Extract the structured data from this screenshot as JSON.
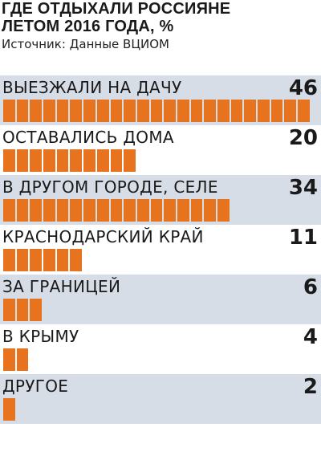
{
  "header": {
    "title": "ГДЕ ОТДЫХАЛИ РОССИЯНЕ\nЛЕТОМ 2016 ГОДА, %",
    "subtitle": "Источник: Данные ВЦИОМ"
  },
  "colors": {
    "bar": "#e8731e",
    "shade": "#d7dde6"
  },
  "chart_data": {
    "type": "bar",
    "title": "ГДЕ ОТДЫХАЛИ РОССИЯНЕ ЛЕТОМ 2016 ГОДА, %",
    "subtitle": "Источник: Данные ВЦИОМ",
    "orientation": "horizontal",
    "unit": "%",
    "xlim": [
      0,
      46
    ],
    "grid": false,
    "categories": [
      "ВЫЕЗЖАЛИ НА ДАЧУ",
      "ОСТАВАЛИСЬ ДОМА",
      "В ДРУГОМ ГОРОДЕ, СЕЛЕ",
      "КРАСНОДАРСКИЙ КРАЙ",
      "ЗА ГРАНИЦЕЙ",
      "В КРЫМУ",
      "ДРУГОЕ"
    ],
    "values": [
      46,
      20,
      34,
      11,
      6,
      4,
      2
    ]
  }
}
